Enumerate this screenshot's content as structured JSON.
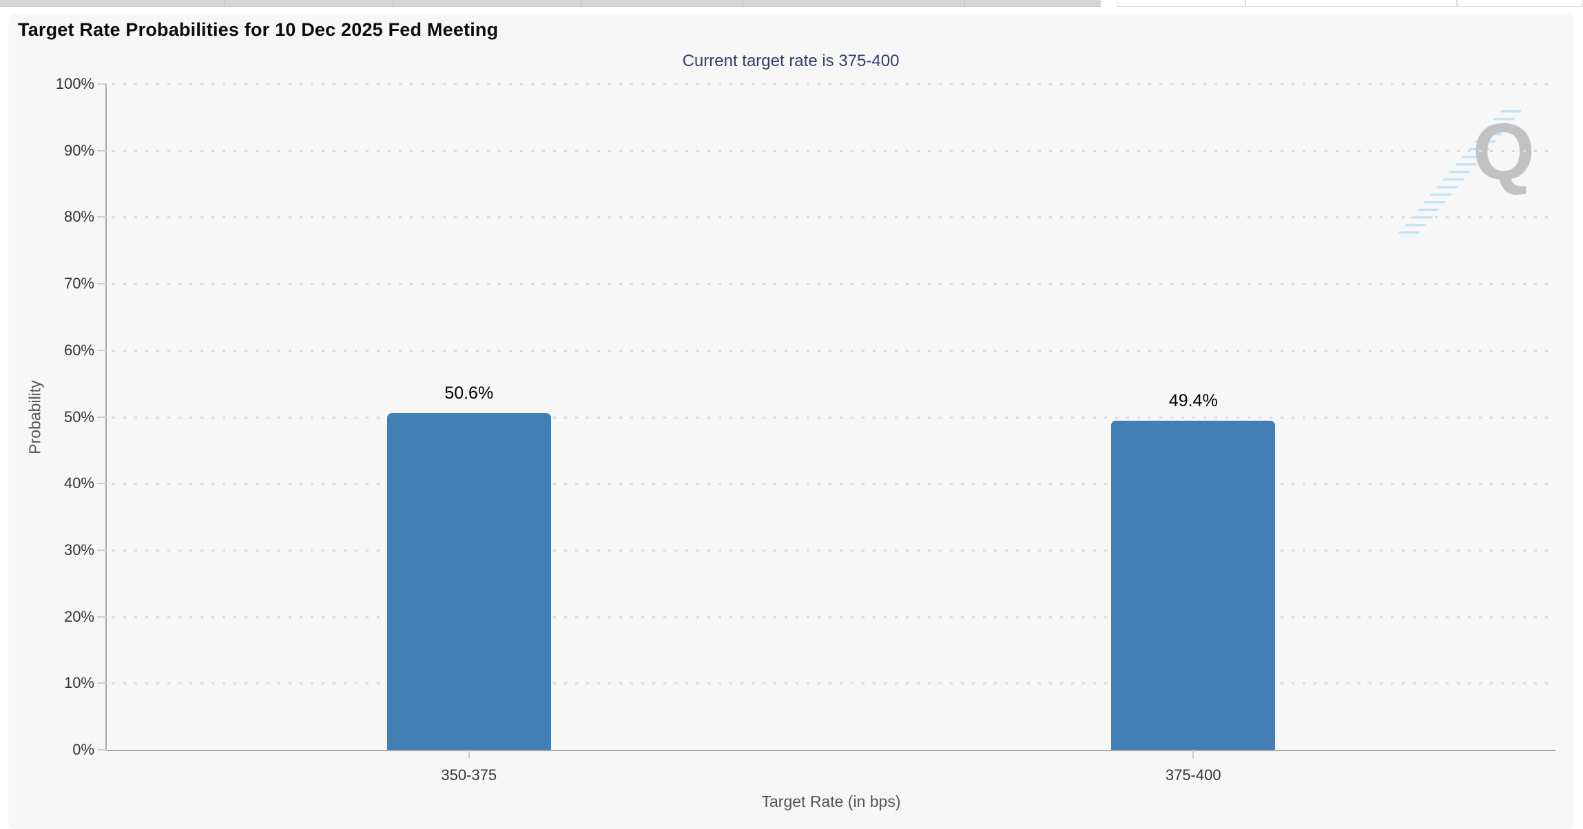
{
  "top_strip": {
    "tab_fill": "#d3d7da",
    "tab_separator": "#b9bfc5",
    "tab_boundaries": [
      0,
      326,
      570,
      843,
      1078,
      1400,
      1598
    ],
    "cell_bounds": [
      [
        1621,
        187
      ],
      [
        1808,
        307
      ],
      [
        2115,
        183
      ]
    ]
  },
  "chart_data": {
    "type": "bar",
    "title": "Target Rate Probabilities for 10 Dec 2025 Fed Meeting",
    "subtitle": "Current target rate is 375-400",
    "categories": [
      "350-375",
      "375-400"
    ],
    "values": [
      50.6,
      49.4
    ],
    "value_labels": [
      "50.6%",
      "49.4%"
    ],
    "xlabel": "Target Rate (in bps)",
    "ylabel": "Probability",
    "ylim": [
      0,
      100
    ],
    "ytick_step": 10,
    "ytick_labels": [
      "0%",
      "10%",
      "20%",
      "30%",
      "40%",
      "50%",
      "60%",
      "70%",
      "80%",
      "90%",
      "100%"
    ],
    "grid": "dotted-horizontal",
    "legend": "none",
    "bar_color": "#427fb5",
    "subtitle_color": "#2f4168"
  },
  "menu": {
    "icon": "hamburger-menu-icon"
  },
  "watermark": {
    "letter": "Q"
  }
}
